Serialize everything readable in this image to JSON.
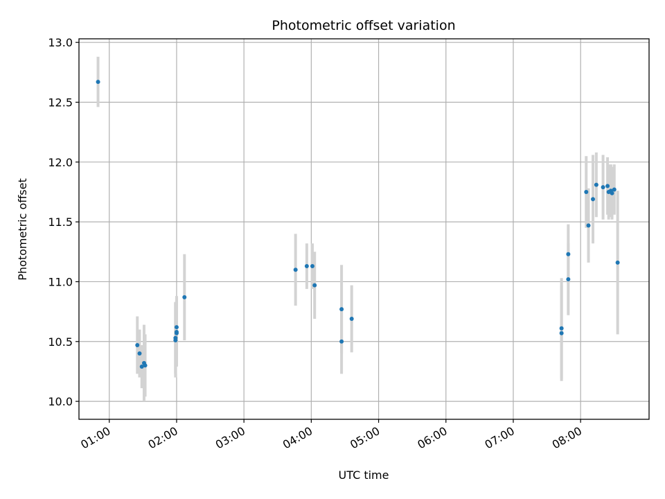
{
  "chart_data": {
    "type": "scatter",
    "title": "Photometric offset variation",
    "xlabel": "UTC time",
    "ylabel": "Photometric offset",
    "x_tick_labels": [
      "01:00",
      "02:00",
      "03:00",
      "04:00",
      "05:00",
      "06:00",
      "07:00",
      "08:00"
    ],
    "y_tick_labels": [
      "10.0",
      "10.5",
      "11.0",
      "11.5",
      "12.0",
      "12.5",
      "13.0"
    ],
    "y_ticks": [
      10.0,
      10.5,
      11.0,
      11.5,
      12.0,
      12.5,
      13.0
    ],
    "ylim": [
      9.85,
      13.03
    ],
    "xlim": [
      "00:33",
      "09:01"
    ],
    "grid": true,
    "colors": {
      "point": "#1f77b4",
      "errorbar": "#d3d3d3",
      "grid": "#b0b0b0"
    },
    "points": [
      {
        "x": "00:50",
        "y": 12.67,
        "err": 0.21
      },
      {
        "x": "01:25",
        "y": 10.47,
        "err": 0.24
      },
      {
        "x": "01:27",
        "y": 10.4,
        "err": 0.2
      },
      {
        "x": "01:29",
        "y": 10.29,
        "err": 0.18
      },
      {
        "x": "01:31",
        "y": 10.32,
        "err": 0.32
      },
      {
        "x": "01:32",
        "y": 10.3,
        "err": 0.26
      },
      {
        "x": "01:59",
        "y": 10.51,
        "err": 0.31
      },
      {
        "x": "01:59",
        "y": 10.53,
        "err": 0.3
      },
      {
        "x": "02:00",
        "y": 10.58,
        "err": 0.29
      },
      {
        "x": "02:00",
        "y": 10.57,
        "err": 0.27
      },
      {
        "x": "02:00",
        "y": 10.62,
        "err": 0.26
      },
      {
        "x": "02:07",
        "y": 10.87,
        "err": 0.36
      },
      {
        "x": "03:46",
        "y": 11.1,
        "err": 0.3
      },
      {
        "x": "03:56",
        "y": 11.13,
        "err": 0.19
      },
      {
        "x": "04:01",
        "y": 11.13,
        "err": 0.19
      },
      {
        "x": "04:03",
        "y": 10.97,
        "err": 0.28
      },
      {
        "x": "04:27",
        "y": 10.77,
        "err": 0.37
      },
      {
        "x": "04:27",
        "y": 10.5,
        "err": 0.27
      },
      {
        "x": "04:36",
        "y": 10.69,
        "err": 0.28
      },
      {
        "x": "07:43",
        "y": 10.57,
        "err": 0.4
      },
      {
        "x": "07:43",
        "y": 10.61,
        "err": 0.42
      },
      {
        "x": "07:49",
        "y": 11.02,
        "err": 0.3
      },
      {
        "x": "07:49",
        "y": 11.23,
        "err": 0.25
      },
      {
        "x": "08:05",
        "y": 11.75,
        "err": 0.3
      },
      {
        "x": "08:07",
        "y": 11.47,
        "err": 0.31
      },
      {
        "x": "08:11",
        "y": 11.69,
        "err": 0.37
      },
      {
        "x": "08:14",
        "y": 11.81,
        "err": 0.27
      },
      {
        "x": "08:20",
        "y": 11.79,
        "err": 0.27
      },
      {
        "x": "08:24",
        "y": 11.8,
        "err": 0.24
      },
      {
        "x": "08:25",
        "y": 11.75,
        "err": 0.23
      },
      {
        "x": "08:27",
        "y": 11.76,
        "err": 0.22
      },
      {
        "x": "08:28",
        "y": 11.74,
        "err": 0.22
      },
      {
        "x": "08:30",
        "y": 11.77,
        "err": 0.21
      },
      {
        "x": "08:33",
        "y": 11.16,
        "err": 0.6
      }
    ]
  }
}
